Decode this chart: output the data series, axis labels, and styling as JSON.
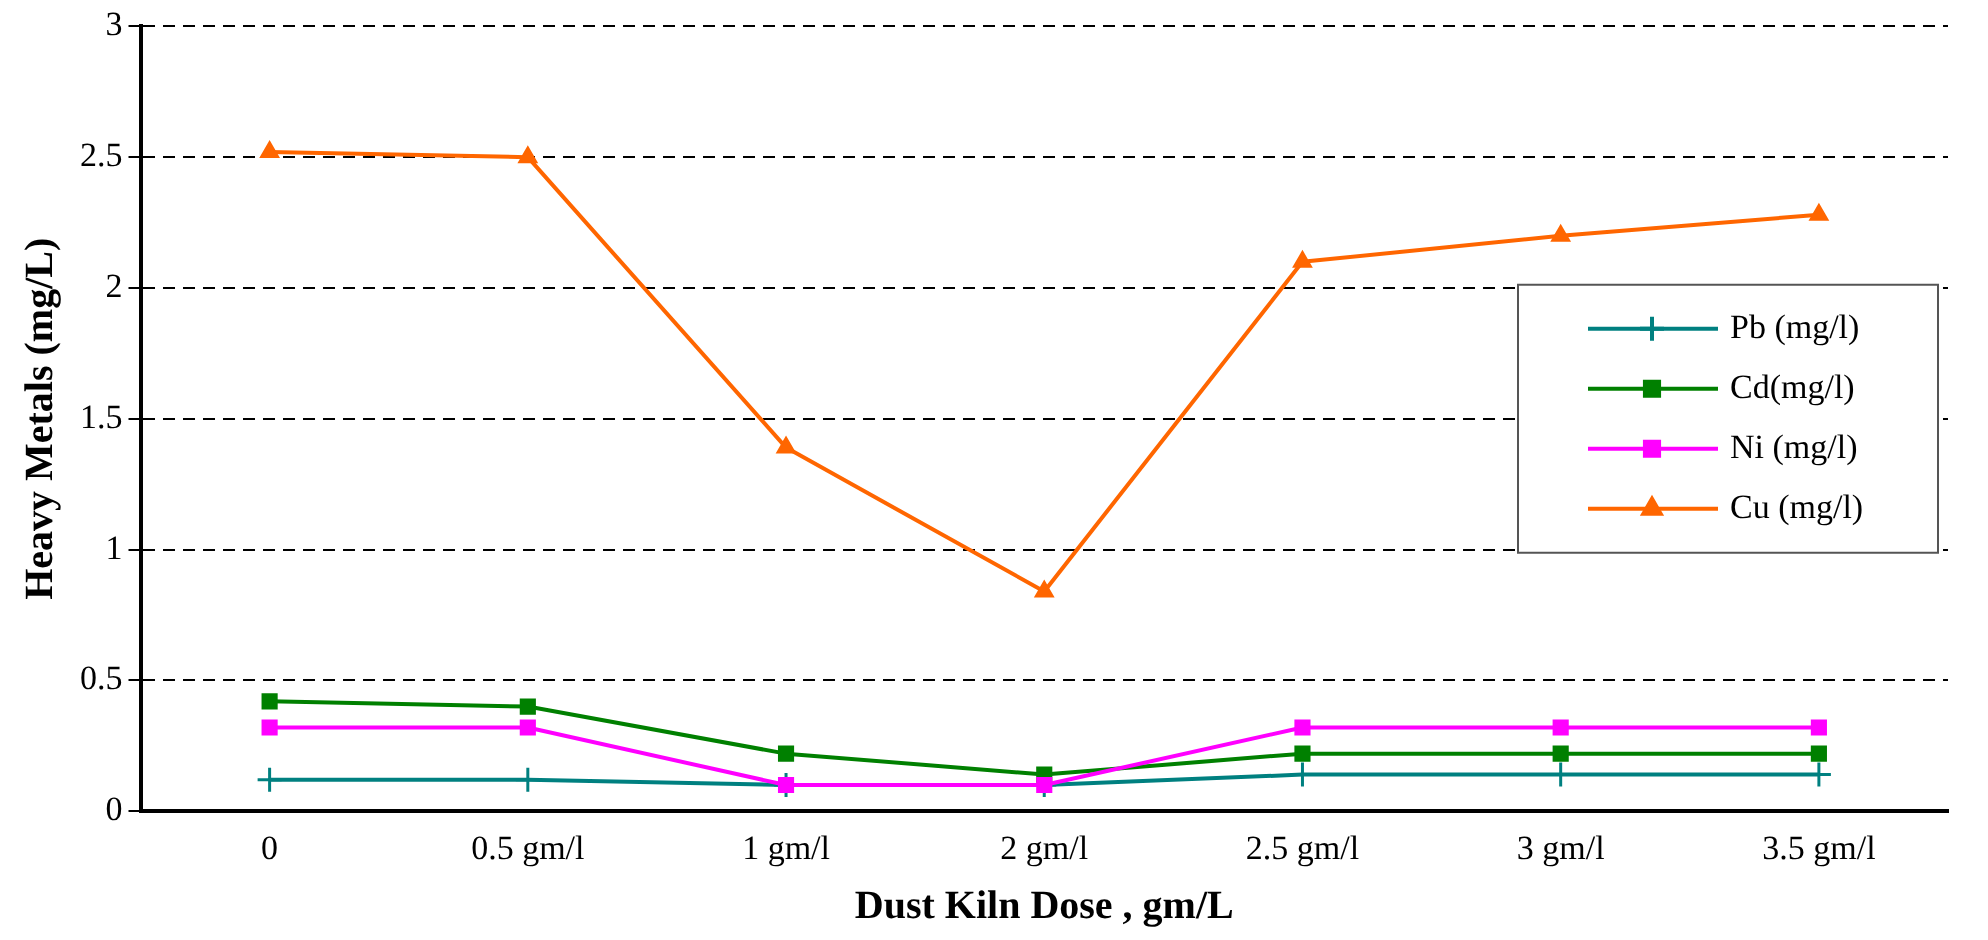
{
  "chart_data": {
    "type": "line",
    "xlabel": "Dust Kiln Dose , gm/L",
    "ylabel": "Heavy Metals (mg/L)",
    "categories": [
      "0",
      "0.5 gm/l",
      "1 gm/l",
      "2 gm/l",
      "2.5 gm/l",
      "3 gm/l",
      "3.5 gm/l"
    ],
    "ylim": [
      0,
      3
    ],
    "yticks": [
      0,
      0.5,
      1,
      1.5,
      2,
      2.5,
      3
    ],
    "grid": "y",
    "legend": "right",
    "series": [
      {
        "name": "Pb (mg/l)",
        "color": "#008080",
        "marker": "cross",
        "values": [
          0.12,
          0.12,
          0.1,
          0.1,
          0.14,
          0.14,
          0.14
        ]
      },
      {
        "name": "Cd(mg/l)",
        "color": "#008000",
        "marker": "square",
        "values": [
          0.42,
          0.4,
          0.22,
          0.14,
          0.22,
          0.22,
          0.22
        ]
      },
      {
        "name": "Ni (mg/l)",
        "color": "#ff00ff",
        "marker": "square",
        "values": [
          0.32,
          0.32,
          0.1,
          0.1,
          0.32,
          0.32,
          0.32
        ]
      },
      {
        "name": "Cu (mg/l)",
        "color": "#ff6600",
        "marker": "triangle",
        "values": [
          2.52,
          2.5,
          1.39,
          0.84,
          2.1,
          2.2,
          2.28
        ]
      }
    ]
  }
}
